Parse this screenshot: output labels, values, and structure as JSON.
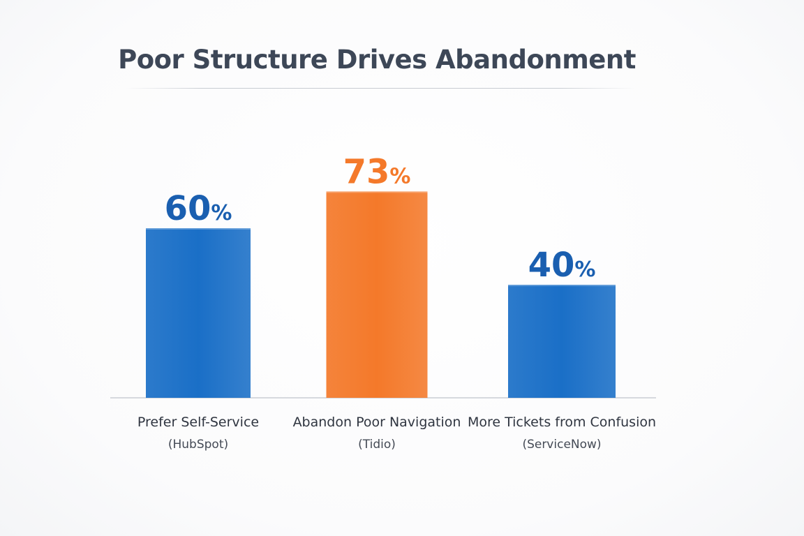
{
  "colors": {
    "primary_blue": "#1a6fc7",
    "highlight_orange": "#f4792a",
    "title_text": "#3d4757",
    "axis_line": "#c9cdd3",
    "label_text": "#2f3540",
    "source_text": "#444a55"
  },
  "chart_data": {
    "type": "bar",
    "title": "Poor Structure Drives Abandonment",
    "categories": [
      "Prefer Self-Service",
      "Abandon Poor Navigation",
      "More Tickets from Confusion"
    ],
    "sources": [
      "(HubSpot)",
      "(Tidio)",
      "(ServiceNow)"
    ],
    "values": [
      60,
      73,
      40
    ],
    "value_unit": "%",
    "bar_colors": [
      "#1a6fc7",
      "#f4792a",
      "#1a6fc7"
    ],
    "label_colors": [
      "#1a5fb0",
      "#f4792a",
      "#1a5fb0"
    ],
    "ylim": [
      0,
      100
    ],
    "grid": false,
    "legend": "none"
  }
}
